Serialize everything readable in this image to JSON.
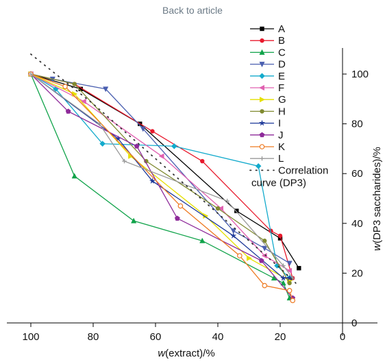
{
  "header": {
    "back_link": "Back to article"
  },
  "chart_data": {
    "type": "line",
    "xlabel_prefix": "w",
    "xlabel_rest": "(extract)/%",
    "ylabel_prefix": "w",
    "ylabel_rest": "(DP3 saccharides)/%",
    "xlim": [
      110,
      0
    ],
    "ylim": [
      0,
      110
    ],
    "x_ticks": [
      100,
      80,
      60,
      40,
      20,
      0
    ],
    "y_ticks": [
      0,
      20,
      40,
      60,
      80,
      100
    ],
    "legend_position": "top-right (inside)",
    "series": [
      {
        "name": "A",
        "color": "#000000",
        "marker": "square",
        "x": [
          100,
          84,
          65,
          34,
          20,
          14
        ],
        "y": [
          100,
          94,
          80,
          45,
          34,
          22
        ]
      },
      {
        "name": "B",
        "color": "#e8192c",
        "marker": "circle",
        "x": [
          100,
          86,
          61,
          45,
          23,
          20,
          16
        ],
        "y": [
          100,
          96,
          77,
          65,
          37,
          35,
          18
        ]
      },
      {
        "name": "C",
        "color": "#10a34a",
        "marker": "triangle-up",
        "x": [
          100,
          86,
          67,
          45,
          22,
          19,
          17
        ],
        "y": [
          100,
          59,
          41,
          33,
          18,
          16,
          10
        ]
      },
      {
        "name": "D",
        "color": "#4a5fb0",
        "marker": "triangle-down",
        "x": [
          100,
          93,
          76,
          64,
          35,
          25,
          17
        ],
        "y": [
          100,
          98,
          94,
          78,
          37,
          30,
          24
        ]
      },
      {
        "name": "E",
        "color": "#12aacc",
        "marker": "diamond",
        "x": [
          100,
          92,
          77,
          54,
          27,
          21,
          17
        ],
        "y": [
          100,
          94,
          72,
          71,
          63,
          23,
          18
        ]
      },
      {
        "name": "F",
        "color": "#e060b0",
        "marker": "triangle-left",
        "x": [
          100,
          83,
          58,
          39,
          25,
          17
        ],
        "y": [
          100,
          89,
          67,
          46,
          27,
          21
        ]
      },
      {
        "name": "G",
        "color": "#e6e000",
        "marker": "triangle-right",
        "x": [
          100,
          86,
          68,
          44,
          30,
          17
        ],
        "y": [
          100,
          92,
          67,
          43,
          26,
          17
        ]
      },
      {
        "name": "H",
        "color": "#808a30",
        "marker": "circle",
        "x": [
          100,
          86,
          63,
          40,
          25,
          17
        ],
        "y": [
          100,
          96,
          65,
          46,
          33,
          16
        ]
      },
      {
        "name": "I",
        "color": "#1f3a9a",
        "marker": "star",
        "x": [
          100,
          72,
          61,
          35,
          19,
          17
        ],
        "y": [
          100,
          74,
          57,
          35,
          18,
          18
        ]
      },
      {
        "name": "J",
        "color": "#8e2a9a",
        "marker": "pentagon",
        "x": [
          100,
          88,
          66,
          53,
          26,
          16
        ],
        "y": [
          100,
          85,
          71,
          42,
          25,
          10
        ]
      },
      {
        "name": "K",
        "color": "#ee7a22",
        "marker": "open-circle",
        "x": [
          100,
          89,
          52,
          33,
          25,
          17,
          16
        ],
        "y": [
          100,
          95,
          47,
          27,
          15,
          13,
          9
        ]
      },
      {
        "name": "L",
        "color": "#999999",
        "marker": "plus",
        "x": [
          100,
          78,
          70,
          37,
          19,
          16
        ],
        "y": [
          100,
          80,
          65,
          49,
          23,
          18
        ]
      }
    ],
    "correlation": {
      "name_line1": "Correlation",
      "name_line2": "curve (DP3)",
      "color": "#333333",
      "x": [
        100,
        90,
        80,
        70,
        60,
        50,
        40,
        30,
        20,
        15
      ],
      "y": [
        108,
        98,
        88,
        77,
        66,
        55,
        44,
        33,
        22,
        16
      ]
    }
  }
}
